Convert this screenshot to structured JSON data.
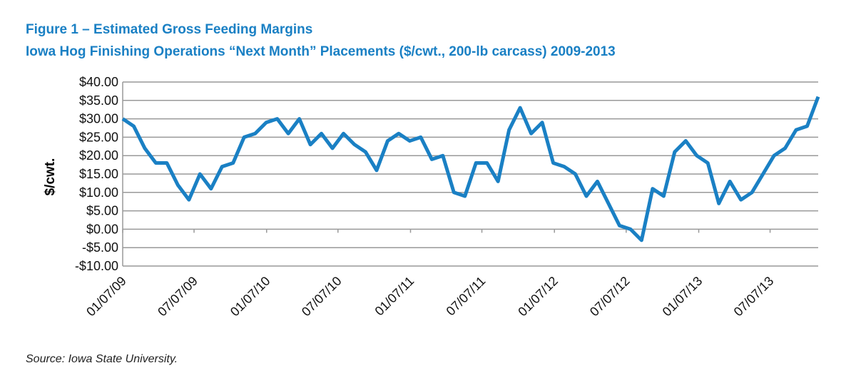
{
  "chart_data": {
    "type": "line",
    "title": "Figure 1 – Estimated Gross Feeding Margins",
    "subtitle": "Iowa Hog Finishing Operations “Next Month” Placements ($/cwt., 200-lb carcass) 2009-2013",
    "y_label": "$/cwt.",
    "source": "Source: Iowa State University.",
    "x": [
      "2009-01-07",
      "2009-02-04",
      "2009-03-04",
      "2009-04-01",
      "2009-04-29",
      "2009-05-27",
      "2009-06-24",
      "2009-07-22",
      "2009-08-19",
      "2009-09-16",
      "2009-10-14",
      "2009-11-11",
      "2009-12-09",
      "2010-01-06",
      "2010-02-03",
      "2010-03-03",
      "2010-03-31",
      "2010-04-28",
      "2010-05-26",
      "2010-06-23",
      "2010-07-21",
      "2010-08-18",
      "2010-09-15",
      "2010-10-13",
      "2010-11-10",
      "2010-12-08",
      "2011-01-05",
      "2011-02-02",
      "2011-03-02",
      "2011-03-30",
      "2011-04-27",
      "2011-05-25",
      "2011-06-22",
      "2011-07-20",
      "2011-08-17",
      "2011-09-14",
      "2011-10-12",
      "2011-11-09",
      "2011-12-07",
      "2012-01-04",
      "2012-02-01",
      "2012-02-29",
      "2012-03-28",
      "2012-04-25",
      "2012-05-23",
      "2012-06-20",
      "2012-07-18",
      "2012-08-15",
      "2012-09-12",
      "2012-10-10",
      "2012-11-07",
      "2012-12-05",
      "2013-01-02",
      "2013-01-30",
      "2013-02-27",
      "2013-03-27",
      "2013-04-24",
      "2013-05-22",
      "2013-06-19",
      "2013-07-17",
      "2013-08-14",
      "2013-09-11",
      "2013-10-09",
      "2013-11-06"
    ],
    "series": [
      {
        "name": "Gross feeding margin",
        "color": "#1a80c4",
        "values": [
          30,
          28,
          22,
          18,
          18,
          12,
          8,
          15,
          11,
          17,
          18,
          25,
          26,
          29,
          30,
          26,
          30,
          23,
          26,
          22,
          26,
          23,
          21,
          16,
          24,
          26,
          24,
          25,
          19,
          20,
          10,
          9,
          18,
          18,
          13,
          27,
          33,
          26,
          29,
          18,
          17,
          15,
          9,
          13,
          7,
          1,
          0,
          -3,
          11,
          9,
          21,
          24,
          20,
          18,
          7,
          13,
          8,
          10,
          15,
          20,
          22,
          27,
          28,
          36
        ]
      }
    ],
    "xlim": [
      "2009-01-07",
      "2013-11-06"
    ],
    "xticks": [
      {
        "value": "2009-01-07",
        "label": "01/07/09"
      },
      {
        "value": "2009-07-07",
        "label": "07/07/09"
      },
      {
        "value": "2010-01-07",
        "label": "01/07/10"
      },
      {
        "value": "2010-07-07",
        "label": "07/07/10"
      },
      {
        "value": "2011-01-07",
        "label": "01/07/11"
      },
      {
        "value": "2011-07-07",
        "label": "07/07/11"
      },
      {
        "value": "2012-01-07",
        "label": "01/07/12"
      },
      {
        "value": "2012-07-07",
        "label": "07/07/12"
      },
      {
        "value": "2013-01-07",
        "label": "01/07/13"
      },
      {
        "value": "2013-07-07",
        "label": "07/07/13"
      }
    ],
    "ylim": [
      -10,
      40
    ],
    "yticks": [
      {
        "value": -10,
        "label": "-$10.00"
      },
      {
        "value": -5,
        "label": "-$5.00"
      },
      {
        "value": 0,
        "label": "$0.00"
      },
      {
        "value": 5,
        "label": "$5.00"
      },
      {
        "value": 10,
        "label": "$10.00"
      },
      {
        "value": 15,
        "label": "$15.00"
      },
      {
        "value": 20,
        "label": "$20.00"
      },
      {
        "value": 25,
        "label": "$25.00"
      },
      {
        "value": 30,
        "label": "$30.00"
      },
      {
        "value": 35,
        "label": "$35.00"
      },
      {
        "value": 40,
        "label": "$40.00"
      }
    ],
    "grid": true
  }
}
